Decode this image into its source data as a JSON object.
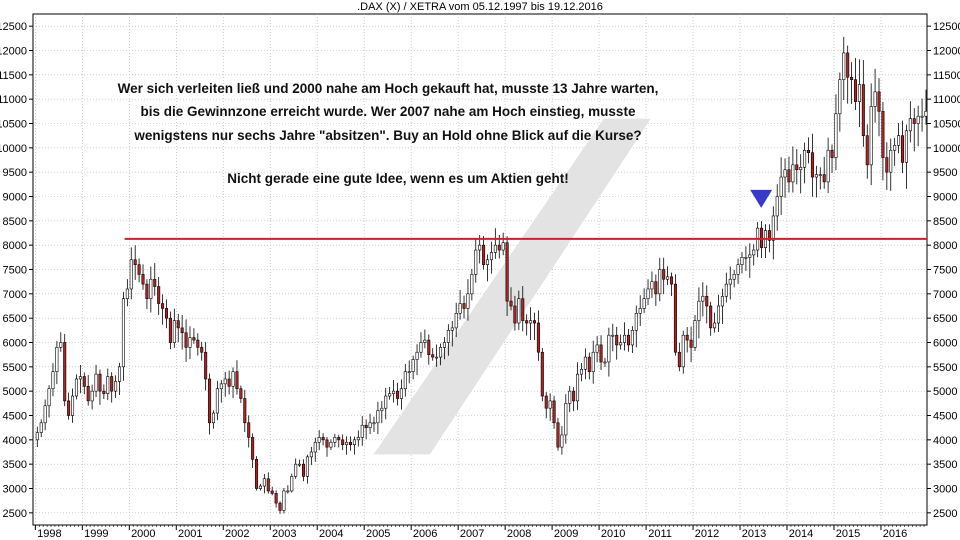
{
  "title": ".DAX (X) / XETRA vom 05.12.1997 bis 19.12.2016",
  "annotation": {
    "line1": "Wer sich verleiten ließ und 2000 nahe am Hoch gekauft hat, musste 13 Jahre warten,",
    "line2": "bis die Gewinnzone erreicht wurde. Wer 2007 nahe am Hoch einstieg, musste",
    "line3": "wenigstens nur sechs Jahre \"absitzen\". Buy an Hold ohne Blick auf die Kurse?",
    "line4": "Nicht gerade eine gute Idee, wenn es um Aktien geht!"
  },
  "colors": {
    "up_candle": "#ffffff",
    "down_candle": "#b22222",
    "candle_outline": "#000000",
    "resistance_line": "#cc2222",
    "marker": "#3a3ac8",
    "band": "#e3e3e3",
    "grid": "#b0b0b0"
  },
  "chart_data": {
    "type": "candlestick",
    "title": ".DAX (X) / XETRA vom 05.12.1997 bis 19.12.2016",
    "xlabel": "",
    "ylabel": "",
    "xlim": [
      1997.95,
      2016.98
    ],
    "ylim": [
      2250,
      12750
    ],
    "y_ticks": [
      2500,
      3000,
      3500,
      4000,
      4500,
      5000,
      5500,
      6000,
      6500,
      7000,
      7500,
      8000,
      8500,
      9000,
      9500,
      10000,
      10500,
      11000,
      11500,
      12000,
      12500
    ],
    "x_ticks": [
      {
        "label": "1998",
        "x": 1998.0
      },
      {
        "label": "1999",
        "x": 1999.0
      },
      {
        "label": "2000",
        "x": 2000.0
      },
      {
        "label": "2001",
        "x": 2001.0
      },
      {
        "label": "2002",
        "x": 2002.0
      },
      {
        "label": "2003",
        "x": 2003.0
      },
      {
        "label": "2004",
        "x": 2004.0
      },
      {
        "label": "2005",
        "x": 2005.0
      },
      {
        "label": "2006",
        "x": 2006.0
      },
      {
        "label": "2007",
        "x": 2007.0
      },
      {
        "label": "2008",
        "x": 2008.0
      },
      {
        "label": "2009",
        "x": 2009.0
      },
      {
        "label": "2010",
        "x": 2010.0
      },
      {
        "label": "2011",
        "x": 2011.0
      },
      {
        "label": "2012",
        "x": 2012.0
      },
      {
        "label": "2013",
        "x": 2013.0
      },
      {
        "label": "2014",
        "x": 2014.0
      },
      {
        "label": "2015",
        "x": 2015.0
      },
      {
        "label": "2016",
        "x": 2016.0
      }
    ],
    "grid": true,
    "resistance_level": 8130,
    "resistance_x_range": [
      1999.9,
      2016.98
    ],
    "marker": {
      "x": 2013.45,
      "y": 8950,
      "shape": "down-triangle"
    },
    "band": {
      "x_bottom": [
        2005.2,
        2006.4
      ],
      "x_top": [
        2010.1,
        2011.1
      ],
      "y_bottom": 3700,
      "y_top": 10600
    },
    "closes": [
      4150,
      4350,
      4700,
      5050,
      5400,
      5900,
      6000,
      4800,
      4500,
      4900,
      5250,
      5300,
      5100,
      4800,
      5000,
      5350,
      5000,
      4950,
      5300,
      5000,
      5200,
      5500,
      6900,
      7100,
      7700,
      7600,
      7400,
      7200,
      6900,
      7300,
      7150,
      6800,
      6700,
      6500,
      6000,
      6450,
      6300,
      6200,
      5900,
      6100,
      6050,
      5900,
      5800,
      5250,
      4350,
      4550,
      5050,
      5150,
      5250,
      5100,
      5400,
      5050,
      4850,
      4350,
      4050,
      3600,
      3000,
      3050,
      3200,
      2950,
      2900,
      2700,
      2550,
      2950,
      2950,
      3250,
      3500,
      3500,
      3250,
      3650,
      3750,
      3950,
      4050,
      4000,
      3850,
      3950,
      4050,
      4000,
      3900,
      3950,
      3900,
      4000,
      4050,
      4300,
      4250,
      4350,
      4350,
      4600,
      4650,
      4900,
      4950,
      5000,
      4850,
      5050,
      5400,
      5400,
      5650,
      5800,
      6000,
      6050,
      5750,
      5700,
      5700,
      5900,
      6000,
      6250,
      6300,
      6600,
      6800,
      6700,
      7000,
      7400,
      7900,
      8000,
      7600,
      7700,
      7850,
      8000,
      7900,
      8050,
      6850,
      6750,
      6400,
      6900,
      6450,
      6400,
      6450,
      6400,
      5800,
      4900,
      4650,
      4800,
      4350,
      3850,
      4100,
      4750,
      5000,
      4800,
      5350,
      5450,
      5700,
      5400,
      5800,
      5950,
      5600,
      5600,
      6150,
      6150,
      5950,
      6000,
      6150,
      5950,
      6250,
      6600,
      6700,
      6900,
      7100,
      7250,
      7000,
      7500,
      7300,
      7350,
      7200,
      5800,
      5500,
      6150,
      6050,
      5900,
      6450,
      6850,
      6950,
      6750,
      6300,
      6400,
      6750,
      6950,
      7200,
      7300,
      7400,
      7600,
      7750,
      7750,
      7800,
      7900,
      8350,
      7950,
      8300,
      8100,
      8600,
      9000,
      9400,
      9550,
      9300,
      9650,
      9550,
      9600,
      9950,
      9900,
      9400,
      9450,
      9450,
      9300,
      9950,
      9800,
      10700,
      11400,
      11950,
      11450,
      11400,
      10950,
      11300,
      10250,
      9650,
      10850,
      11150,
      10750,
      9800,
      9500,
      9950,
      10050,
      10250,
      9700,
      10350,
      10600,
      10500,
      10650,
      10650,
      10750
    ]
  }
}
